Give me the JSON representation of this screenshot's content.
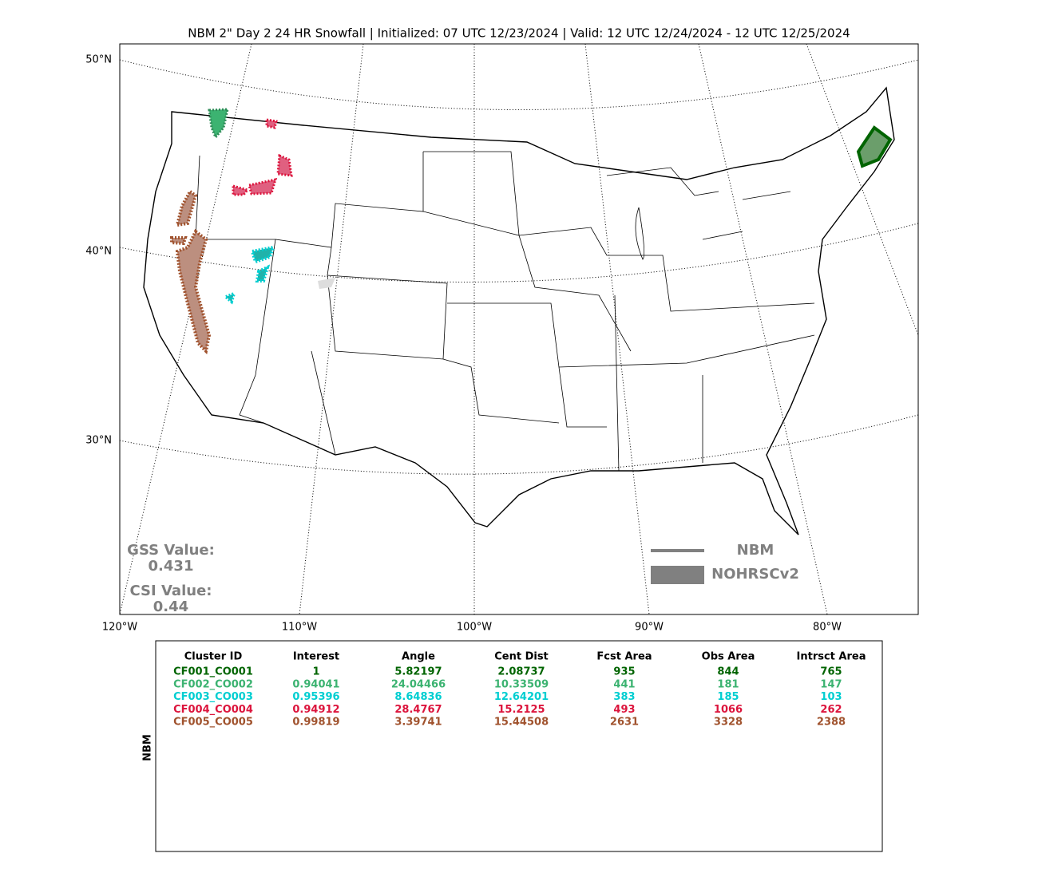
{
  "title": "NBM 2\" Day 2 24 HR Snowfall | Initialized: 07 UTC 12/23/2024 | Valid: 12 UTC 12/24/2024 - 12 UTC 12/25/2024",
  "map": {
    "lat_labels": [
      "50°N",
      "40°N",
      "30°N"
    ],
    "lon_labels": [
      "120°W",
      "110°W",
      "100°W",
      "90°W",
      "80°W"
    ],
    "gss_label": "GSS Value:",
    "gss_value": "0.431",
    "csi_label": "CSI Value:",
    "csi_value": "0.44",
    "legend": [
      "NBM",
      "NOHRSCv2"
    ]
  },
  "table": {
    "side_label": "NBM",
    "columns": [
      "Cluster ID",
      "Interest",
      "Angle",
      "Cent Dist",
      "Fcst Area",
      "Obs Area",
      "Intrsct Area"
    ],
    "row_colors": [
      "#006400",
      "#3cb371",
      "#00ced1",
      "#dc143c",
      "#a0522d"
    ],
    "rows": [
      [
        "CF001_CO001",
        1,
        5.82197,
        2.08737,
        935,
        844,
        765
      ],
      [
        "CF002_CO002",
        0.94041,
        24.04466,
        10.33509,
        441,
        181,
        147
      ],
      [
        "CF003_CO003",
        0.95396,
        8.64836,
        12.64201,
        383,
        185,
        103
      ],
      [
        "CF004_CO004",
        0.94912,
        28.4767,
        15.2125,
        493,
        1066,
        262
      ],
      [
        "CF005_CO005",
        0.99819,
        3.39741,
        15.44508,
        2631,
        3328,
        2388
      ]
    ]
  }
}
